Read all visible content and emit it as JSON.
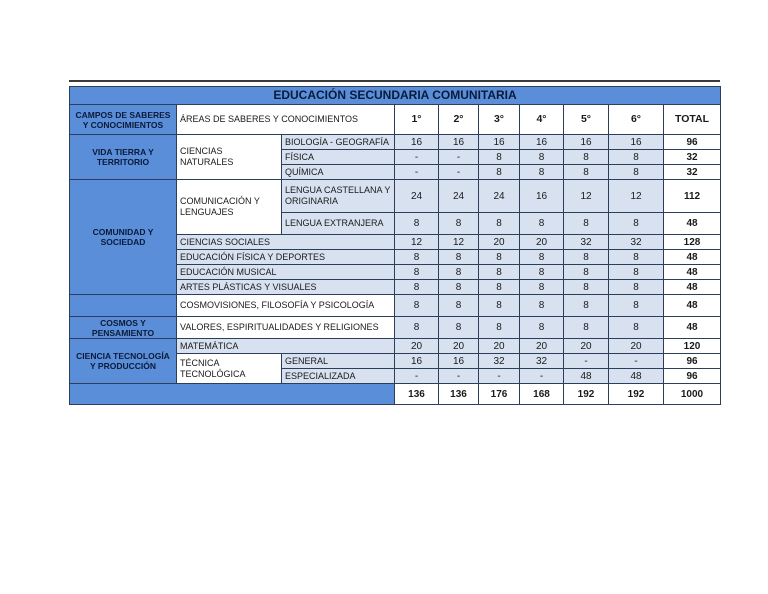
{
  "title": "EDUCACIÓN SECUNDARIA COMUNITARIA",
  "header": {
    "campos": "CAMPOS DE SABERES Y CONOCIMIENTOS",
    "areas": "ÁREAS DE SABERES Y CONOCIMIENTOS",
    "years": [
      "1°",
      "2°",
      "3°",
      "4°",
      "5°",
      "6°"
    ],
    "total": "TOTAL"
  },
  "fields": {
    "vida": "VIDA TIERRA Y TERRITORIO",
    "comunidad": "COMUNIDAD Y SOCIEDAD",
    "cosmos": "COSMOS Y PENSAMIENTO",
    "ciencia": "CIENCIA TECNOLOGÍA Y PRODUCCIÓN"
  },
  "areas": {
    "ciencias_naturales": "CIENCIAS NATURALES",
    "comunicacion": "COMUNICACIÓN Y LENGUAJES",
    "tecnica": "TÉCNICA TECNOLÓGICA"
  },
  "rows": {
    "biologia": {
      "label": "BIOLOGÍA  - GEOGRAFÍA",
      "v": [
        "16",
        "16",
        "16",
        "16",
        "16",
        "16"
      ],
      "t": "96"
    },
    "fisica": {
      "label": "FÍSICA",
      "v": [
        "-",
        "-",
        "8",
        "8",
        "8",
        "8"
      ],
      "t": "32"
    },
    "quimica": {
      "label": "QUÍMICA",
      "v": [
        "-",
        "-",
        "8",
        "8",
        "8",
        "8"
      ],
      "t": "32"
    },
    "lengua_castellana": {
      "label": "LENGUA CASTELLANA Y ORIGINARIA",
      "v": [
        "24",
        "24",
        "24",
        "16",
        "12",
        "12"
      ],
      "t": "112"
    },
    "lengua_extranjera": {
      "label": "LENGUA EXTRANJERA",
      "v": [
        "8",
        "8",
        "8",
        "8",
        "8",
        "8"
      ],
      "t": "48"
    },
    "ciencias_sociales": {
      "label": "CIENCIAS SOCIALES",
      "v": [
        "12",
        "12",
        "20",
        "20",
        "32",
        "32"
      ],
      "t": "128"
    },
    "educacion_fisica": {
      "label": "EDUCACIÓN FÍSICA Y DEPORTES",
      "v": [
        "8",
        "8",
        "8",
        "8",
        "8",
        "8"
      ],
      "t": "48"
    },
    "educacion_musical": {
      "label": "EDUCACIÓN MUSICAL",
      "v": [
        "8",
        "8",
        "8",
        "8",
        "8",
        "8"
      ],
      "t": "48"
    },
    "artes": {
      "label": "ARTES PLÁSTICAS Y VISUALES",
      "v": [
        "8",
        "8",
        "8",
        "8",
        "8",
        "8"
      ],
      "t": "48"
    },
    "cosmovisiones": {
      "label": "COSMOVISIONES, FILOSOFÍA Y PSICOLOGÍA",
      "v": [
        "8",
        "8",
        "8",
        "8",
        "8",
        "8"
      ],
      "t": "48"
    },
    "valores": {
      "label": "VALORES, ESPIRITUALIDADES Y RELIGIONES",
      "v": [
        "8",
        "8",
        "8",
        "8",
        "8",
        "8"
      ],
      "t": "48"
    },
    "matematica": {
      "label": "MATEMÁTICA",
      "v": [
        "20",
        "20",
        "20",
        "20",
        "20",
        "20"
      ],
      "t": "120"
    },
    "general": {
      "label": "GENERAL",
      "v": [
        "16",
        "16",
        "32",
        "32",
        "-",
        "-"
      ],
      "t": "96"
    },
    "especializada": {
      "label": "ESPECIALIZADA",
      "v": [
        "-",
        "-",
        "-",
        "-",
        "48",
        "48"
      ],
      "t": "96"
    }
  },
  "totals": {
    "v": [
      "136",
      "136",
      "176",
      "168",
      "192",
      "192"
    ],
    "t": "1000"
  }
}
